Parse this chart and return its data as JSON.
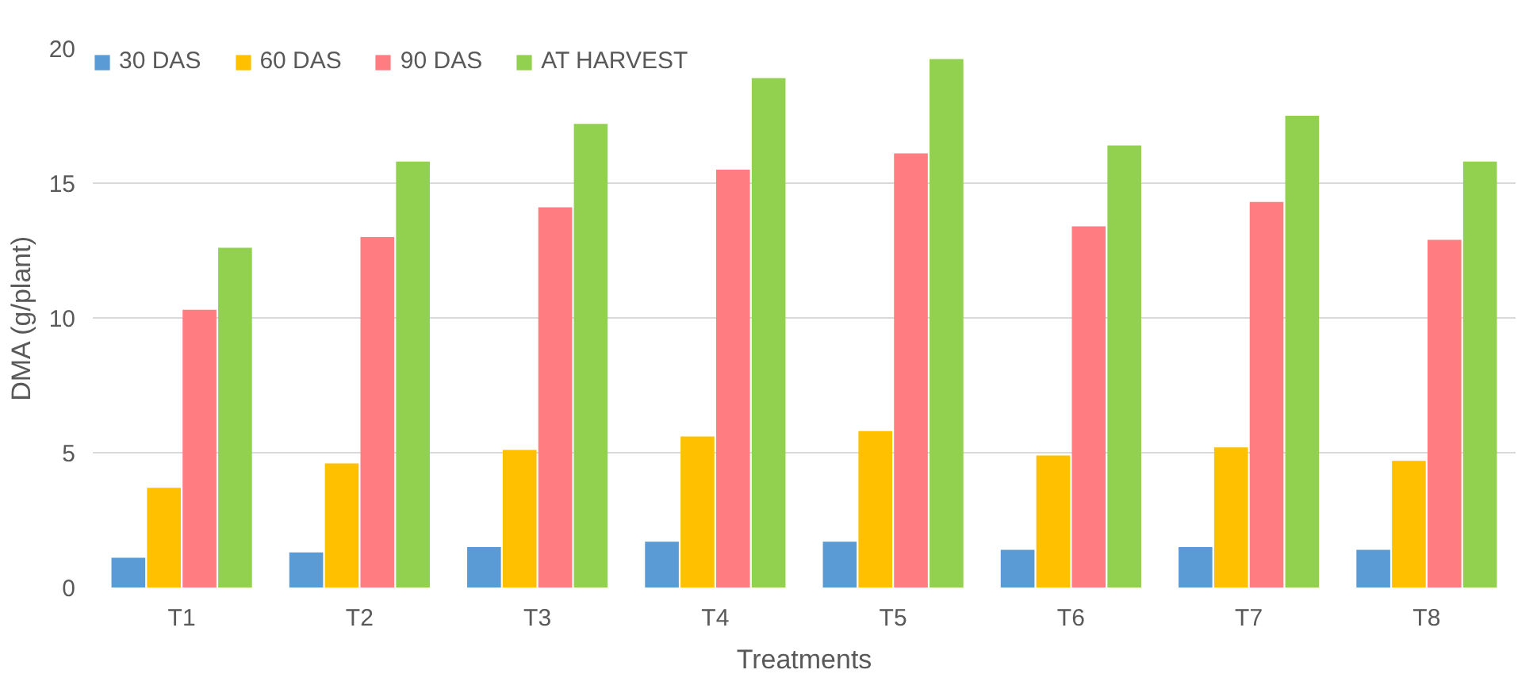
{
  "chart_data": {
    "type": "bar",
    "xlabel": "Treatments",
    "ylabel": "DMA (g/plant)",
    "categories": [
      "T1",
      "T2",
      "T3",
      "T4",
      "T5",
      "T6",
      "T7",
      "T8"
    ],
    "series": [
      {
        "name": "30 DAS",
        "color": "#5b9bd5",
        "values": [
          1.1,
          1.3,
          1.5,
          1.7,
          1.7,
          1.4,
          1.5,
          1.4
        ]
      },
      {
        "name": "60 DAS",
        "color": "#ffc000",
        "values": [
          3.7,
          4.6,
          5.1,
          5.6,
          5.8,
          4.9,
          5.2,
          4.7
        ]
      },
      {
        "name": "90 DAS",
        "color": "#ff7c80",
        "values": [
          10.3,
          13.0,
          14.1,
          15.5,
          16.1,
          13.4,
          14.3,
          12.9
        ]
      },
      {
        "name": "AT HARVEST",
        "color": "#92d050",
        "values": [
          12.6,
          15.8,
          17.2,
          18.9,
          19.6,
          16.4,
          17.5,
          15.8
        ]
      }
    ],
    "ylim": [
      0,
      20
    ],
    "yticks": [
      0,
      5,
      10,
      15,
      20
    ],
    "grid": "y",
    "legend": "top"
  }
}
